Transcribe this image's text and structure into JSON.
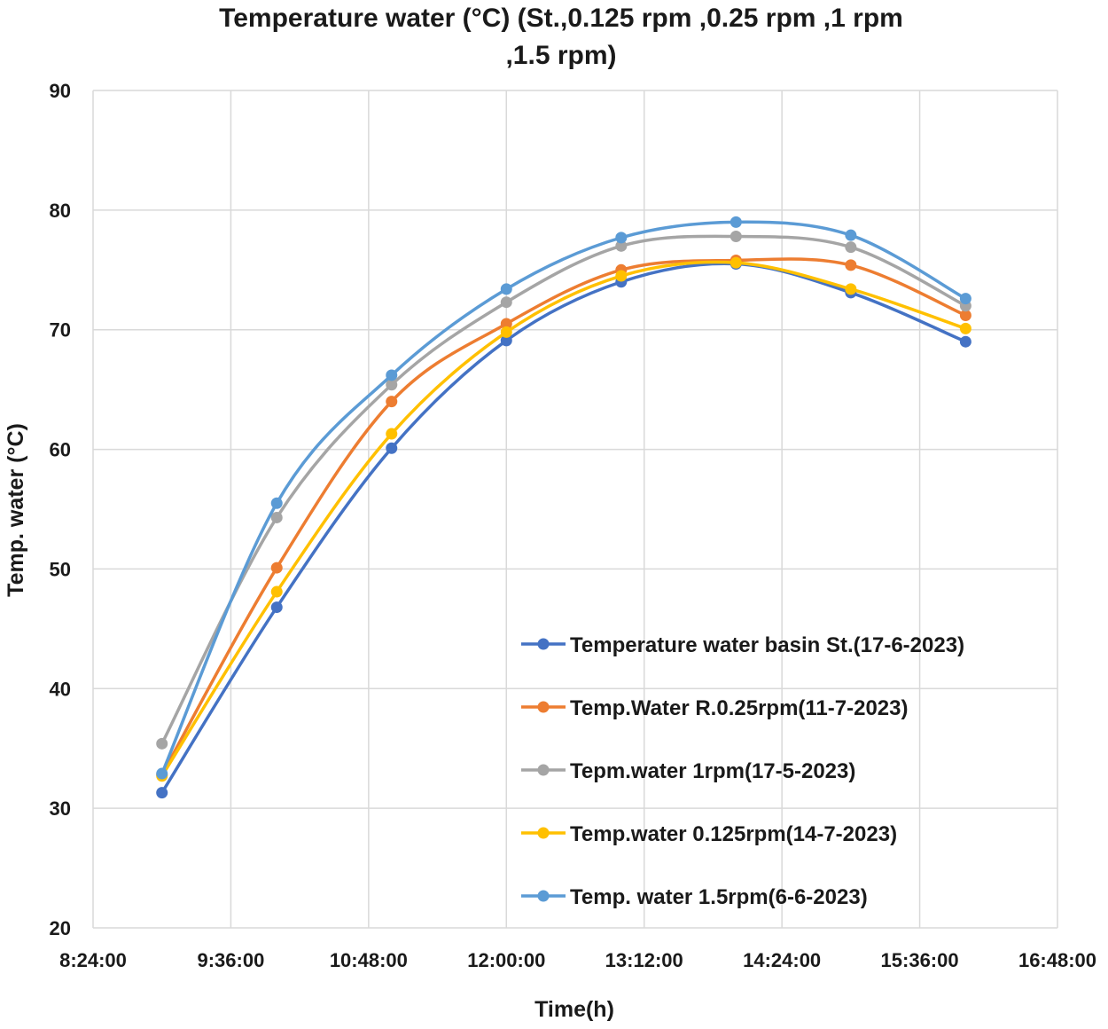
{
  "chart_data": {
    "type": "line",
    "title_line1": "Temperature water (°C) (St.,0.125 rpm ,0.25 rpm ,1 rpm",
    "title_line2": ",1.5 rpm)",
    "xlabel": "Time(h)",
    "ylabel": "Temp. water (°C)",
    "x_ticks": [
      "8:24:00",
      "9:36:00",
      "10:48:00",
      "12:00:00",
      "13:12:00",
      "14:24:00",
      "15:36:00",
      "16:48:00"
    ],
    "x_tick_minutes": [
      504,
      576,
      648,
      720,
      792,
      864,
      936,
      1008
    ],
    "xlim_minutes": [
      504,
      1008
    ],
    "y_ticks": [
      20,
      30,
      40,
      50,
      60,
      70,
      80,
      90
    ],
    "ylim": [
      20,
      90
    ],
    "grid": true,
    "smooth": true,
    "legend_position": "lower-right",
    "x_minutes": [
      540,
      600,
      660,
      720,
      780,
      840,
      900,
      960
    ],
    "series": [
      {
        "name": "Temperature water basin St.(17-6-2023)",
        "color": "#4472c4",
        "values": [
          31.3,
          46.8,
          60.1,
          69.1,
          74.0,
          75.5,
          73.1,
          69.0
        ]
      },
      {
        "name": "Temp.Water R.0.25rpm(11-7-2023)",
        "color": "#ed7d31",
        "values": [
          32.8,
          50.1,
          64.0,
          70.5,
          75.0,
          75.8,
          75.4,
          71.2
        ]
      },
      {
        "name": "Tepm.water 1rpm(17-5-2023)",
        "color": "#a5a5a5",
        "values": [
          35.4,
          54.3,
          65.4,
          72.3,
          77.0,
          77.8,
          76.9,
          72.0
        ]
      },
      {
        "name": "Temp.water 0.125rpm(14-7-2023)",
        "color": "#ffc000",
        "values": [
          32.7,
          48.1,
          61.3,
          69.8,
          74.5,
          75.6,
          73.4,
          70.1
        ]
      },
      {
        "name": "Temp. water 1.5rpm(6-6-2023)",
        "color": "#5b9bd5",
        "values": [
          32.9,
          55.5,
          66.2,
          73.4,
          77.7,
          79.0,
          77.9,
          72.6
        ]
      }
    ]
  }
}
